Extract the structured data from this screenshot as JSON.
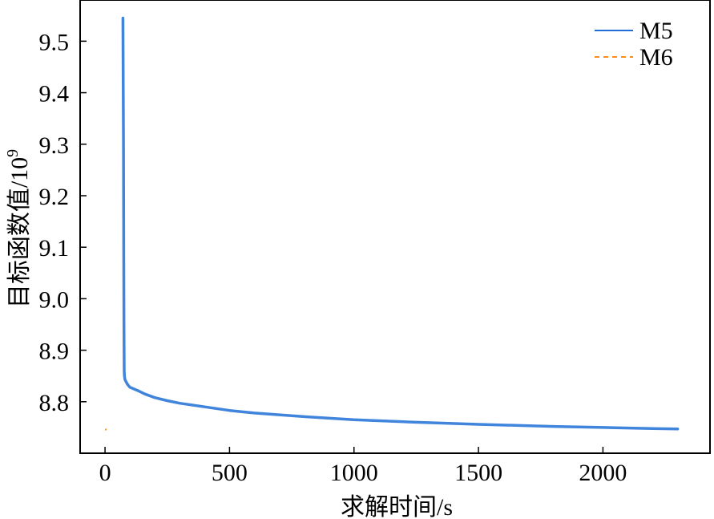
{
  "chart_data": {
    "type": "line",
    "xlabel": "求解时间/s",
    "ylabel_main": "目标函数值/10",
    "ylabel_exp": "9",
    "xlim": [
      -100,
      2430
    ],
    "ylim": [
      8.7,
      9.58
    ],
    "xticks": [
      0,
      500,
      1000,
      1500,
      2000
    ],
    "yticks": [
      8.8,
      8.9,
      9.0,
      9.1,
      9.2,
      9.3,
      9.4,
      9.5
    ],
    "xtick_labels": [
      "0",
      "500",
      "1000",
      "1500",
      "2000"
    ],
    "ytick_labels": [
      "8.8",
      "8.9",
      "9.0",
      "9.1",
      "9.2",
      "9.3",
      "9.4",
      "9.5"
    ],
    "grid": false,
    "legend_position": "top-right",
    "series": [
      {
        "name": "M5",
        "color": "#1f6fd6",
        "style": "solid",
        "x": [
          72,
          73,
          74,
          75,
          76,
          77,
          78,
          80,
          90,
          100,
          130,
          160,
          200,
          250,
          300,
          400,
          500,
          600,
          800,
          1000,
          1200,
          1500,
          1800,
          2000,
          2200,
          2300
        ],
        "y": [
          9.545,
          9.44,
          9.3,
          9.1,
          8.95,
          8.86,
          8.85,
          8.843,
          8.834,
          8.828,
          8.822,
          8.815,
          8.808,
          8.802,
          8.797,
          8.79,
          8.783,
          8.778,
          8.771,
          8.765,
          8.761,
          8.756,
          8.752,
          8.75,
          8.748,
          8.747
        ]
      },
      {
        "name": "M6",
        "color": "#ff8c1a",
        "style": "dashed",
        "x": [
          0,
          10
        ],
        "y": [
          8.746,
          8.746
        ]
      }
    ]
  }
}
